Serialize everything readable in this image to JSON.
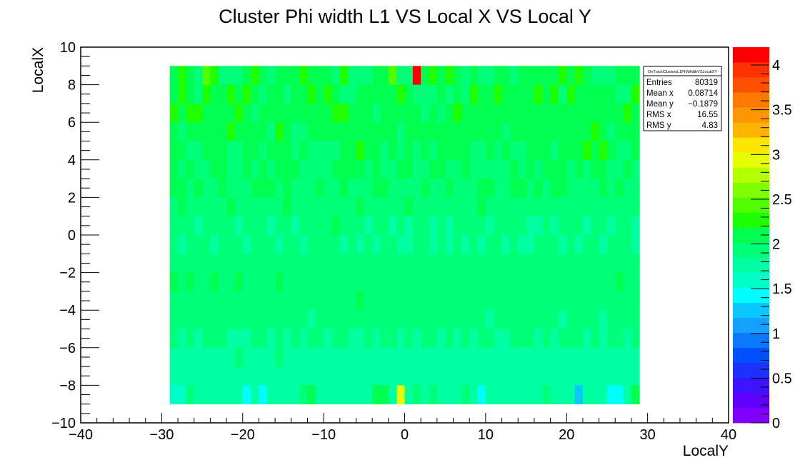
{
  "chart_data": {
    "type": "heatmap",
    "title": "Cluster Phi width L1 VS Local X VS Local Y",
    "xlabel": "LocalY",
    "ylabel": "LocalX",
    "xlim": [
      -40,
      40
    ],
    "ylim": [
      -10,
      10
    ],
    "x_ticks": [
      -40,
      -30,
      -20,
      -10,
      0,
      10,
      20,
      30,
      40
    ],
    "y_ticks": [
      -10,
      -8,
      -6,
      -4,
      -2,
      0,
      2,
      4,
      6,
      8,
      10
    ],
    "x_tick_labels": [
      "−40",
      "−30",
      "−20",
      "−10",
      "0",
      "10",
      "20",
      "30",
      "40"
    ],
    "y_tick_labels": [
      "−10",
      "−8",
      "−6",
      "−4",
      "−2",
      "0",
      "2",
      "4",
      "6",
      "8",
      "10"
    ],
    "z_range": [
      0,
      4.2
    ],
    "z_ticks": [
      0,
      0.5,
      1,
      1.5,
      2,
      2.5,
      3,
      3.5,
      4
    ],
    "z_tick_labels": [
      "0",
      "0.5",
      "1",
      "1.5",
      "2",
      "2.5",
      "3",
      "3.5",
      "4"
    ],
    "grid": false,
    "bins": {
      "x_start": -29,
      "x_end": 29,
      "nx": 58,
      "y_start": -9,
      "y_end": 9,
      "ny": 18,
      "rows_from_top": [
        [
          2.06,
          2.3,
          2.13,
          1.92,
          2.36,
          2.25,
          1.89,
          1.87,
          1.86,
          2.11,
          2.21,
          2.12,
          1.87,
          2.04,
          2.17,
          2.06,
          2.22,
          2.12,
          2.13,
          2.06,
          2.01,
          2.24,
          1.94,
          1.97,
          1.88,
          2.05,
          2.03,
          2.46,
          1.86,
          1.99,
          4.2,
          2.11,
          2.23,
          2.14,
          2.24,
          2.13,
          2.01,
          2.07,
          1.97,
          1.88,
          2.11,
          2.18,
          1.92,
          2.11,
          2.12,
          2.15,
          2.18,
          2.03,
          2.21,
          2.16,
          2.2,
          2.15,
          2.0,
          2.01,
          1.89,
          2.03,
          2.03,
          2.03
        ],
        [
          2.05,
          2.19,
          2.05,
          1.88,
          2.2,
          2.08,
          2.1,
          2.19,
          2.06,
          2.19,
          2.13,
          1.99,
          2.09,
          2.17,
          1.99,
          2.15,
          2.16,
          2.24,
          2.05,
          2.23,
          2.14,
          2.01,
          1.88,
          2.06,
          2.16,
          2.14,
          2.03,
          2.13,
          2.22,
          2.12,
          1.97,
          1.92,
          2.01,
          2.18,
          1.99,
          2.12,
          1.96,
          2.24,
          2.03,
          2.09,
          2.26,
          2.15,
          2.18,
          2.07,
          2.09,
          2.23,
          2.14,
          2.2,
          2.01,
          2.23,
          2.08,
          2.15,
          2.07,
          2.1,
          2.07,
          1.99,
          1.89,
          2.24
        ],
        [
          2.23,
          2.07,
          2.19,
          2.2,
          2.11,
          2.16,
          2.14,
          2.06,
          2.25,
          2.03,
          2.01,
          2.09,
          2.04,
          2.02,
          2.09,
          2.12,
          2.1,
          2.07,
          2.13,
          2.17,
          2.27,
          2.19,
          2.15,
          2.08,
          2.17,
          2.0,
          2.04,
          2.14,
          2.16,
          2.14,
          2.06,
          1.94,
          2.04,
          1.99,
          2.11,
          2.21,
          2.14,
          2.16,
          2.05,
          2.08,
          2.11,
          2.17,
          2.12,
          2.12,
          2.05,
          2.14,
          2.18,
          2.07,
          2.09,
          2.03,
          2.11,
          2.15,
          2.09,
          2.12,
          2.18,
          2.09,
          2.22,
          2.13
        ],
        [
          2.14,
          2.0,
          2.18,
          2.04,
          2.09,
          2.03,
          2.14,
          2.22,
          2.06,
          2.13,
          2.05,
          2.06,
          1.99,
          2.21,
          2.07,
          2.01,
          1.96,
          2.03,
          2.06,
          2.04,
          2.16,
          2.08,
          2.1,
          2.05,
          2.14,
          2.08,
          2.14,
          2.11,
          1.99,
          2.05,
          2.07,
          2.02,
          2.03,
          2.14,
          2.17,
          2.02,
          2.11,
          2.06,
          2.02,
          2.16,
          2.18,
          2.0,
          2.16,
          2.18,
          2.03,
          2.08,
          2.07,
          2.17,
          2.02,
          2.05,
          2.05,
          2.13,
          2.21,
          2.08,
          2.01,
          2.15,
          2.14,
          2.17
        ],
        [
          2.05,
          2.05,
          1.9,
          1.98,
          2.07,
          2.15,
          2.05,
          1.98,
          1.99,
          2.02,
          2.03,
          1.97,
          2.04,
          2.03,
          2.03,
          1.92,
          2.14,
          1.94,
          1.95,
          2.0,
          1.94,
          2.15,
          2.03,
          2.2,
          2.14,
          2.03,
          1.92,
          2.04,
          2.01,
          2.02,
          1.96,
          2.04,
          1.93,
          2.04,
          2.14,
          2.03,
          2.02,
          2.0,
          2.0,
          2.05,
          1.98,
          2.02,
          2.0,
          1.99,
          2.07,
          2.07,
          2.07,
          1.96,
          2.11,
          2.16,
          2.04,
          2.24,
          2.06,
          2.2,
          2.13,
          2.01,
          1.96,
          2.04
        ],
        [
          2.05,
          1.96,
          2.02,
          2.0,
          1.91,
          2.15,
          2.1,
          1.95,
          1.99,
          2.09,
          1.89,
          2.05,
          1.97,
          2.03,
          2.06,
          2.11,
          1.94,
          1.98,
          2.01,
          1.95,
          2.02,
          2.1,
          2.06,
          2.09,
          1.98,
          2.13,
          1.98,
          1.95,
          2.03,
          2.09,
          1.95,
          1.99,
          2.05,
          2.07,
          1.9,
          1.96,
          2.02,
          1.93,
          2.0,
          1.93,
          1.99,
          1.91,
          2.03,
          1.97,
          2.04,
          2.01,
          2.03,
          2.08,
          2.08,
          2.0,
          2.04,
          1.94,
          2.07,
          2.02,
          2.0,
          2.01,
          2.13,
          1.98
        ],
        [
          2.03,
          2.08,
          1.99,
          2.03,
          1.99,
          1.94,
          2.08,
          1.88,
          1.96,
          1.96,
          2.02,
          2.09,
          2.07,
          1.92,
          2.1,
          1.93,
          1.95,
          1.97,
          2.05,
          1.99,
          1.97,
          2.04,
          1.98,
          1.92,
          1.98,
          2.08,
          2.02,
          2.0,
          1.98,
          2.01,
          1.93,
          2.11,
          1.94,
          1.87,
          2.03,
          1.97,
          2.0,
          1.93,
          2.03,
          2.02,
          1.96,
          1.96,
          2.09,
          2.03,
          2.01,
          2.07,
          1.91,
          2.05,
          2.03,
          2.01,
          1.96,
          1.99,
          1.95,
          2.06,
          1.97,
          2.11,
          1.89,
          1.94
        ],
        [
          1.91,
          2.02,
          1.99,
          1.93,
          1.96,
          1.94,
          1.89,
          2.07,
          1.97,
          2.01,
          1.92,
          1.9,
          1.99,
          1.98,
          2.07,
          1.93,
          1.88,
          1.96,
          2.0,
          2.01,
          1.94,
          1.95,
          1.97,
          2.12,
          1.94,
          1.86,
          2.0,
          1.91,
          2.0,
          2.05,
          1.89,
          1.96,
          1.98,
          1.93,
          1.86,
          2.0,
          1.92,
          1.95,
          2.02,
          1.94,
          1.97,
          1.94,
          1.92,
          1.98,
          2.0,
          1.96,
          1.97,
          1.92,
          1.95,
          1.97,
          1.93,
          1.94,
          1.98,
          1.93,
          1.87,
          1.99,
          1.95,
          2.0
        ],
        [
          1.9,
          1.96,
          1.92,
          1.81,
          1.95,
          1.93,
          1.85,
          1.93,
          1.82,
          1.96,
          1.89,
          1.9,
          1.83,
          1.93,
          1.93,
          1.84,
          1.85,
          1.89,
          1.96,
          1.86,
          2.03,
          1.87,
          1.93,
          1.89,
          1.83,
          1.87,
          1.88,
          1.83,
          1.89,
          1.83,
          1.87,
          1.92,
          1.82,
          1.9,
          1.79,
          1.92,
          1.85,
          1.86,
          1.91,
          1.82,
          1.9,
          1.88,
          1.92,
          1.91,
          1.82,
          1.84,
          1.94,
          1.81,
          1.89,
          1.86,
          1.94,
          1.82,
          1.92,
          1.87,
          1.84,
          1.87,
          1.91,
          1.81
        ],
        [
          1.88,
          1.79,
          1.93,
          1.86,
          1.9,
          1.84,
          1.91,
          1.94,
          1.93,
          1.84,
          1.91,
          1.86,
          1.9,
          1.79,
          1.89,
          1.87,
          1.83,
          1.92,
          1.85,
          1.9,
          1.86,
          1.84,
          1.86,
          1.8,
          1.85,
          1.83,
          1.91,
          1.86,
          1.79,
          1.82,
          1.86,
          1.89,
          1.83,
          1.88,
          1.8,
          1.91,
          1.84,
          1.88,
          1.82,
          1.85,
          1.86,
          1.82,
          1.88,
          1.84,
          1.79,
          1.86,
          1.9,
          1.89,
          1.83,
          1.85,
          1.83,
          1.9,
          1.86,
          1.8,
          1.89,
          1.88,
          1.85,
          1.83
        ],
        [
          1.97,
          1.88,
          1.89,
          1.93,
          1.97,
          1.89,
          1.95,
          1.94,
          1.92,
          1.91,
          1.99,
          1.92,
          1.92,
          1.91,
          1.96,
          1.9,
          1.93,
          1.88,
          1.93,
          1.93,
          1.89,
          1.91,
          1.89,
          1.88,
          1.92,
          1.96,
          1.93,
          1.9,
          1.85,
          1.89,
          1.86,
          1.9,
          1.91,
          1.88,
          1.94,
          1.89,
          1.86,
          1.89,
          1.9,
          1.96,
          1.9,
          1.91,
          1.95,
          1.87,
          1.91,
          1.88,
          1.9,
          1.91,
          1.87,
          1.92,
          1.95,
          1.9,
          1.93,
          1.88,
          1.9,
          1.86,
          1.9,
          1.88
        ],
        [
          2.05,
          1.99,
          2.04,
          1.94,
          1.99,
          2.05,
          1.94,
          1.97,
          2.02,
          1.96,
          1.95,
          1.98,
          1.99,
          2.05,
          1.97,
          1.97,
          1.97,
          1.93,
          1.98,
          1.93,
          1.94,
          1.96,
          1.9,
          1.94,
          1.96,
          1.94,
          1.94,
          1.99,
          1.94,
          1.96,
          1.88,
          1.95,
          1.98,
          1.92,
          1.96,
          1.98,
          1.91,
          1.94,
          1.97,
          1.96,
          1.93,
          1.96,
          1.96,
          1.94,
          1.9,
          1.94,
          1.9,
          1.97,
          1.95,
          1.92,
          1.95,
          1.98,
          1.93,
          1.95,
          1.91,
          2.02,
          1.96,
          1.93
        ],
        [
          1.86,
          1.89,
          1.89,
          1.93,
          1.88,
          1.93,
          1.9,
          1.93,
          1.92,
          1.89,
          1.91,
          1.87,
          1.93,
          1.9,
          1.87,
          1.9,
          1.87,
          1.88,
          1.9,
          1.9,
          1.88,
          1.91,
          1.91,
          2.08,
          1.93,
          1.93,
          1.9,
          1.87,
          1.93,
          1.88,
          1.9,
          1.92,
          1.9,
          1.89,
          1.89,
          1.92,
          1.9,
          1.9,
          1.92,
          1.91,
          1.93,
          1.86,
          1.89,
          1.91,
          1.9,
          1.92,
          1.88,
          1.89,
          1.91,
          1.88,
          1.94,
          1.88,
          1.93,
          1.9,
          1.89,
          1.93,
          1.91,
          1.86
        ],
        [
          1.85,
          1.86,
          1.88,
          1.94,
          1.86,
          1.87,
          1.89,
          1.86,
          1.87,
          1.85,
          1.87,
          1.86,
          1.89,
          1.87,
          1.87,
          1.87,
          1.89,
          1.83,
          1.88,
          1.87,
          1.88,
          1.85,
          1.88,
          1.86,
          1.87,
          1.85,
          1.89,
          1.87,
          1.87,
          1.87,
          1.88,
          1.85,
          1.87,
          1.87,
          1.88,
          1.88,
          1.91,
          1.86,
          1.86,
          1.84,
          1.85,
          1.87,
          1.88,
          1.86,
          1.88,
          1.87,
          1.86,
          1.88,
          1.82,
          1.86,
          1.9,
          1.85,
          1.87,
          1.84,
          1.87,
          1.87,
          1.87,
          1.86
        ],
        [
          1.85,
          1.82,
          1.86,
          1.84,
          1.85,
          1.89,
          1.87,
          1.84,
          1.83,
          1.84,
          1.87,
          1.87,
          1.84,
          1.86,
          1.84,
          1.89,
          1.84,
          1.88,
          1.85,
          1.84,
          1.86,
          1.85,
          1.84,
          1.82,
          1.85,
          1.84,
          1.86,
          1.86,
          1.84,
          1.85,
          1.84,
          1.86,
          1.85,
          1.84,
          1.86,
          1.84,
          1.87,
          1.84,
          1.85,
          1.86,
          1.82,
          1.84,
          1.85,
          1.85,
          1.86,
          1.84,
          1.86,
          1.84,
          1.86,
          1.85,
          1.85,
          1.82,
          1.85,
          1.84,
          1.86,
          1.85,
          1.84,
          1.86
        ],
        [
          1.8,
          1.82,
          1.84,
          1.81,
          1.83,
          1.81,
          1.83,
          1.79,
          1.85,
          1.78,
          1.83,
          1.8,
          1.8,
          1.85,
          1.73,
          1.8,
          1.81,
          1.78,
          1.82,
          1.83,
          1.8,
          1.82,
          1.79,
          1.83,
          1.79,
          1.81,
          1.82,
          1.81,
          1.78,
          1.79,
          1.81,
          1.8,
          1.8,
          1.78,
          1.82,
          1.82,
          1.8,
          1.81,
          1.82,
          1.8,
          1.81,
          1.79,
          1.82,
          1.8,
          1.81,
          1.8,
          1.78,
          1.81,
          1.79,
          1.82,
          1.81,
          1.83,
          1.8,
          1.82,
          1.81,
          1.8,
          1.79,
          1.8
        ],
        [
          1.81,
          1.79,
          1.8,
          1.83,
          1.82,
          1.79,
          1.78,
          1.8,
          1.81,
          1.69,
          1.76,
          1.79,
          1.82,
          1.81,
          1.8,
          1.81,
          1.83,
          1.8,
          1.8,
          1.81,
          1.82,
          1.81,
          1.79,
          1.81,
          1.8,
          1.8,
          1.82,
          1.79,
          1.81,
          1.8,
          1.82,
          1.8,
          1.81,
          1.8,
          1.81,
          1.82,
          1.8,
          1.81,
          1.78,
          1.8,
          1.82,
          1.79,
          1.81,
          1.82,
          1.8,
          1.81,
          1.79,
          1.82,
          1.8,
          1.8,
          1.8,
          1.81,
          1.8,
          1.69,
          1.78,
          1.79,
          1.8,
          1.79
        ],
        [
          1.62,
          1.61,
          1.86,
          1.72,
          1.82,
          1.74,
          1.77,
          1.79,
          1.81,
          1.42,
          1.79,
          1.38,
          1.72,
          1.73,
          1.79,
          1.72,
          1.89,
          2.06,
          1.81,
          1.79,
          1.83,
          1.78,
          1.83,
          1.81,
          1.78,
          2.12,
          2.14,
          1.79,
          2.93,
          1.84,
          1.86,
          1.81,
          1.85,
          1.69,
          1.83,
          1.79,
          1.98,
          1.81,
          1.43,
          1.78,
          1.82,
          1.81,
          1.79,
          1.83,
          1.75,
          1.84,
          1.95,
          1.81,
          1.83,
          1.84,
          1.29,
          1.72,
          1.83,
          1.8,
          1.48,
          1.49,
          1.82,
          2.1
        ]
      ]
    },
    "stats_box": {
      "name": "OnTrackClustersL1PhiWidthVSLocalXY",
      "rows": [
        {
          "label": "Entries",
          "value": "80319"
        },
        {
          "label": "Mean x",
          "value": "0.08714"
        },
        {
          "label": "Mean y",
          "value": "−0.1879"
        },
        {
          "label": "RMS x",
          "value": "16.55"
        },
        {
          "label": "RMS y",
          "value": "4.83"
        }
      ]
    },
    "palette": [
      "#7f00ff",
      "#5f00ff",
      "#3c14ff",
      "#1e32ff",
      "#0050ff",
      "#0a78ff",
      "#14a0ff",
      "#0ac8ff",
      "#00ffff",
      "#00ffc8",
      "#00ffa0",
      "#00ff78",
      "#00ff50",
      "#1eff00",
      "#50ff00",
      "#80ff00",
      "#b4ff00",
      "#e6ff00",
      "#ffe600",
      "#ffb400",
      "#ff9600",
      "#ff7800",
      "#ff5000",
      "#ff3200",
      "#ff0000"
    ]
  }
}
